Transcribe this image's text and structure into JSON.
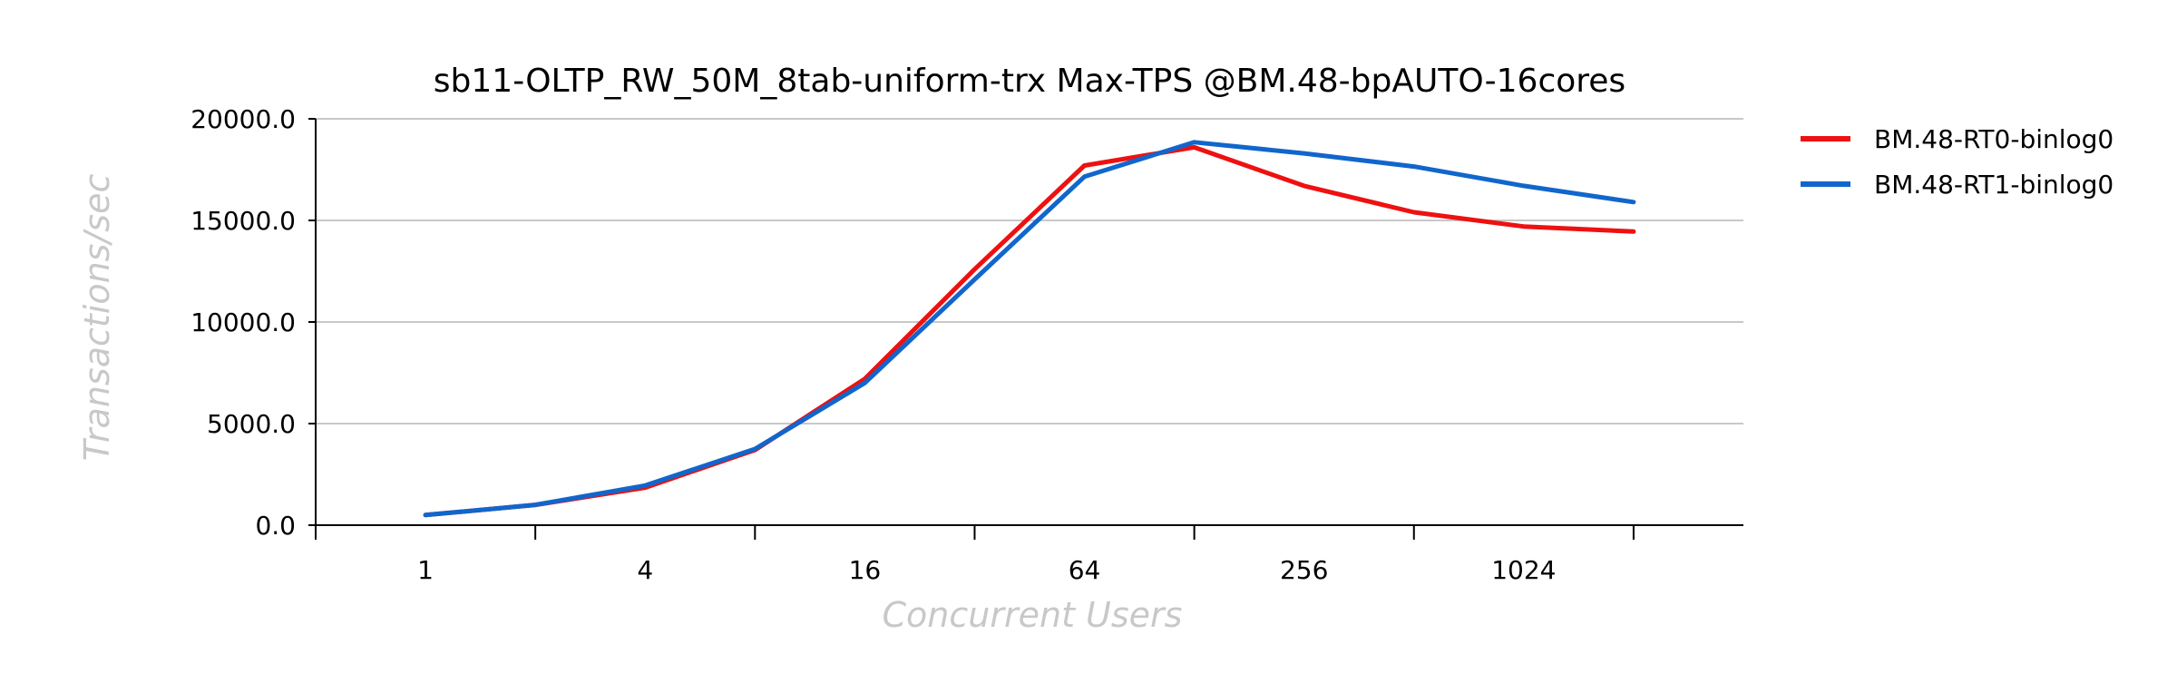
{
  "chart_data": {
    "type": "line",
    "title": "sb11-OLTP_RW_50M_8tab-uniform-trx Max-TPS @BM.48-bpAUTO-16cores",
    "xlabel": "Concurrent Users",
    "ylabel": "Transactions/sec",
    "x": [
      1,
      2,
      4,
      8,
      16,
      32,
      64,
      128,
      256,
      512,
      1024,
      2048
    ],
    "x_tick_labels": [
      "1",
      "4",
      "16",
      "64",
      "256",
      "1024"
    ],
    "x_tick_label_values": [
      1,
      4,
      16,
      64,
      256,
      1024
    ],
    "x_scale": "log2",
    "ylim": [
      0,
      20000
    ],
    "y_ticks": [
      0,
      5000,
      10000,
      15000,
      20000
    ],
    "y_tick_labels": [
      "0.0",
      "5000.0",
      "10000.0",
      "15000.0",
      "20000.0"
    ],
    "grid": true,
    "legend_position": "right",
    "series": [
      {
        "name": "BM.48-RT0-binlog0",
        "color": "#ee1111",
        "values": [
          500,
          1000,
          1850,
          3700,
          7200,
          12600,
          17700,
          18600,
          16700,
          15400,
          14700,
          14450
        ]
      },
      {
        "name": "BM.48-RT1-binlog0",
        "color": "#1166cc",
        "values": [
          500,
          1000,
          1950,
          3750,
          7000,
          12100,
          17150,
          18850,
          18300,
          17650,
          16700,
          15900
        ]
      }
    ]
  }
}
